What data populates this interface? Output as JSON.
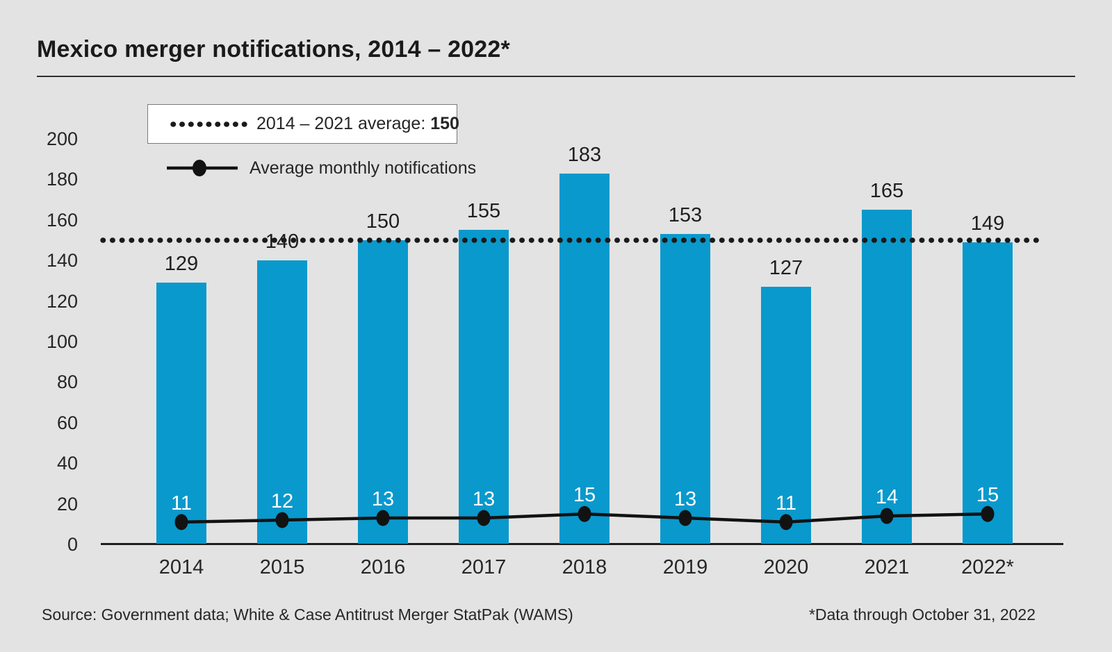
{
  "title": "Mexico merger notifications, 2014 – 2022*",
  "legend": {
    "average_label_prefix": "2014 – 2021 average: ",
    "average_value": "150",
    "monthly_label": "Average monthly notifications"
  },
  "footer": {
    "source": "Source: Government data; White & Case Antitrust Merger StatPak (WAMS)",
    "note": "*Data through October 31, 2022"
  },
  "colors": {
    "bar": "#0999cc",
    "background": "#e3e3e3",
    "line": "#121212",
    "dotted_line": "#1a1a1a",
    "text": "#262626"
  },
  "chart_data": {
    "type": "bar",
    "title": "Mexico merger notifications, 2014 – 2022*",
    "categories": [
      "2014",
      "2015",
      "2016",
      "2017",
      "2018",
      "2019",
      "2020",
      "2021",
      "2022*"
    ],
    "series": [
      {
        "name": "Merger notifications",
        "type": "bar",
        "values": [
          129,
          140,
          150,
          155,
          183,
          153,
          127,
          165,
          149
        ]
      },
      {
        "name": "Average monthly notifications",
        "type": "line",
        "values": [
          11,
          12,
          13,
          13,
          15,
          13,
          11,
          14,
          15
        ]
      }
    ],
    "average_line": {
      "label": "2014 – 2021 average",
      "value": 150
    },
    "xlabel": "",
    "ylabel": "",
    "ylim": [
      0,
      200
    ],
    "yticks": [
      0,
      20,
      40,
      60,
      80,
      100,
      120,
      140,
      160,
      180,
      200
    ],
    "grid": false,
    "legend_position": "top-left"
  }
}
